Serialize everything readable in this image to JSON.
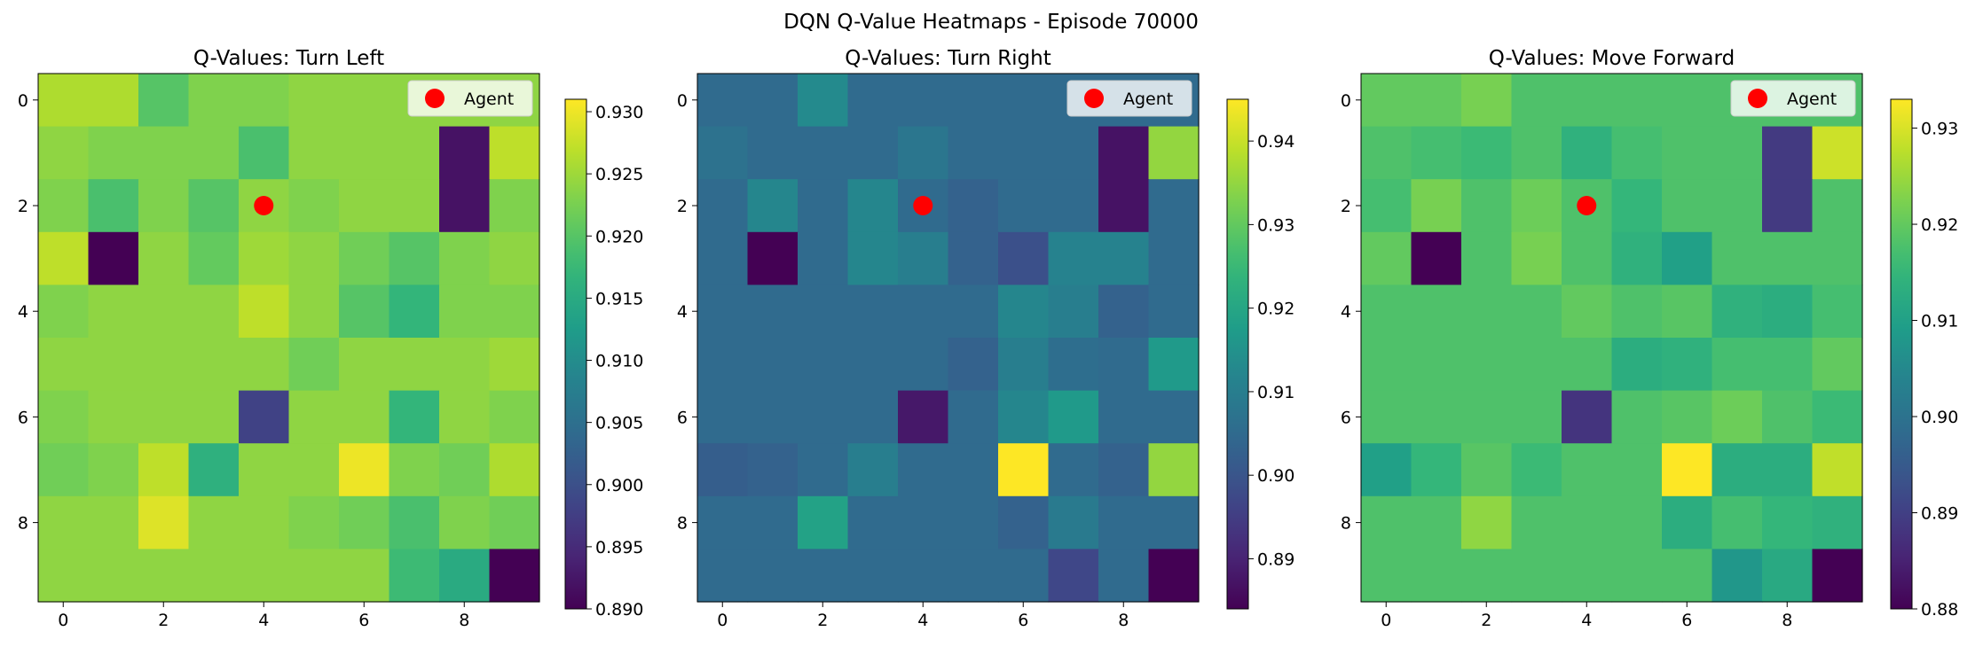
{
  "figure_title": "DQN Q-Value Heatmaps - Episode 70000",
  "chart_data": [
    {
      "type": "heatmap",
      "title": "Q-Values: Turn Left",
      "x_ticks": [
        0,
        2,
        4,
        6,
        8
      ],
      "y_ticks": [
        0,
        2,
        4,
        6,
        8
      ],
      "colormap": "viridis",
      "colorbar_range": [
        0.89,
        0.931
      ],
      "colorbar_ticks": [
        "0.890",
        "0.895",
        "0.900",
        "0.905",
        "0.910",
        "0.915",
        "0.920",
        "0.925",
        "0.930"
      ],
      "legend": {
        "label": "Agent",
        "placement": "upper right",
        "marker_color": "#ff0000"
      },
      "agent": {
        "row": 2,
        "col": 4
      },
      "values": [
        [
          0.926,
          0.926,
          0.92,
          0.923,
          0.923,
          0.924,
          0.924,
          0.924,
          0.924,
          0.924
        ],
        [
          0.924,
          0.923,
          0.923,
          0.923,
          0.919,
          0.924,
          0.924,
          0.924,
          0.892,
          0.927
        ],
        [
          0.923,
          0.919,
          0.923,
          0.92,
          0.924,
          0.923,
          0.924,
          0.924,
          0.892,
          0.923
        ],
        [
          0.927,
          0.89,
          0.924,
          0.921,
          0.925,
          0.924,
          0.922,
          0.92,
          0.923,
          0.924
        ],
        [
          0.923,
          0.924,
          0.924,
          0.924,
          0.927,
          0.924,
          0.92,
          0.917,
          0.923,
          0.923
        ],
        [
          0.924,
          0.924,
          0.924,
          0.924,
          0.924,
          0.922,
          0.924,
          0.924,
          0.924,
          0.925
        ],
        [
          0.923,
          0.924,
          0.924,
          0.924,
          0.898,
          0.924,
          0.924,
          0.917,
          0.924,
          0.923
        ],
        [
          0.922,
          0.923,
          0.927,
          0.916,
          0.924,
          0.924,
          0.93,
          0.923,
          0.922,
          0.926
        ],
        [
          0.924,
          0.924,
          0.929,
          0.924,
          0.924,
          0.923,
          0.922,
          0.919,
          0.923,
          0.922
        ],
        [
          0.924,
          0.924,
          0.924,
          0.924,
          0.924,
          0.924,
          0.924,
          0.918,
          0.915,
          0.89
        ]
      ]
    },
    {
      "type": "heatmap",
      "title": "Q-Values: Turn Right",
      "x_ticks": [
        0,
        2,
        4,
        6,
        8
      ],
      "y_ticks": [
        0,
        2,
        4,
        6,
        8
      ],
      "colormap": "viridis",
      "colorbar_range": [
        0.884,
        0.945
      ],
      "colorbar_ticks": [
        "0.89",
        "0.90",
        "0.91",
        "0.92",
        "0.93",
        "0.94"
      ],
      "legend": {
        "label": "Agent",
        "placement": "upper right",
        "marker_color": "#ff0000"
      },
      "agent": {
        "row": 2,
        "col": 4
      },
      "values": [
        [
          0.905,
          0.905,
          0.913,
          0.905,
          0.905,
          0.905,
          0.905,
          0.905,
          0.905,
          0.905
        ],
        [
          0.907,
          0.905,
          0.905,
          0.905,
          0.908,
          0.905,
          0.905,
          0.905,
          0.887,
          0.935
        ],
        [
          0.905,
          0.912,
          0.905,
          0.912,
          0.905,
          0.903,
          0.905,
          0.905,
          0.887,
          0.905
        ],
        [
          0.905,
          0.884,
          0.905,
          0.912,
          0.91,
          0.903,
          0.899,
          0.911,
          0.911,
          0.905
        ],
        [
          0.905,
          0.905,
          0.905,
          0.905,
          0.905,
          0.905,
          0.912,
          0.91,
          0.903,
          0.905
        ],
        [
          0.905,
          0.905,
          0.905,
          0.905,
          0.905,
          0.903,
          0.91,
          0.906,
          0.905,
          0.917
        ],
        [
          0.905,
          0.905,
          0.905,
          0.905,
          0.888,
          0.905,
          0.912,
          0.917,
          0.905,
          0.905
        ],
        [
          0.902,
          0.903,
          0.905,
          0.91,
          0.905,
          0.905,
          0.945,
          0.905,
          0.903,
          0.935
        ],
        [
          0.905,
          0.905,
          0.919,
          0.905,
          0.905,
          0.905,
          0.903,
          0.909,
          0.905,
          0.905
        ],
        [
          0.905,
          0.905,
          0.905,
          0.905,
          0.905,
          0.905,
          0.905,
          0.897,
          0.905,
          0.884
        ]
      ]
    },
    {
      "type": "heatmap",
      "title": "Q-Values: Move Forward",
      "x_ticks": [
        0,
        2,
        4,
        6,
        8
      ],
      "y_ticks": [
        0,
        2,
        4,
        6,
        8
      ],
      "colormap": "viridis",
      "colorbar_range": [
        0.88,
        0.933
      ],
      "colorbar_ticks": [
        "0.88",
        "0.89",
        "0.90",
        "0.91",
        "0.92",
        "0.93"
      ],
      "legend": {
        "label": "Agent",
        "placement": "upper right",
        "marker_color": "#ff0000"
      },
      "agent": {
        "row": 2,
        "col": 4
      },
      "values": [
        [
          0.92,
          0.92,
          0.922,
          0.918,
          0.918,
          0.918,
          0.918,
          0.918,
          0.918,
          0.918
        ],
        [
          0.918,
          0.917,
          0.916,
          0.918,
          0.914,
          0.917,
          0.918,
          0.918,
          0.889,
          0.929
        ],
        [
          0.917,
          0.922,
          0.918,
          0.921,
          0.918,
          0.915,
          0.918,
          0.918,
          0.889,
          0.918
        ],
        [
          0.92,
          0.88,
          0.918,
          0.922,
          0.918,
          0.914,
          0.91,
          0.918,
          0.918,
          0.918
        ],
        [
          0.918,
          0.918,
          0.918,
          0.918,
          0.92,
          0.918,
          0.919,
          0.914,
          0.913,
          0.917
        ],
        [
          0.918,
          0.918,
          0.918,
          0.918,
          0.918,
          0.913,
          0.914,
          0.917,
          0.917,
          0.92
        ],
        [
          0.918,
          0.918,
          0.918,
          0.918,
          0.888,
          0.918,
          0.919,
          0.921,
          0.918,
          0.916
        ],
        [
          0.91,
          0.915,
          0.919,
          0.916,
          0.918,
          0.918,
          0.933,
          0.913,
          0.913,
          0.928
        ],
        [
          0.918,
          0.918,
          0.924,
          0.918,
          0.918,
          0.918,
          0.913,
          0.917,
          0.915,
          0.914
        ],
        [
          0.918,
          0.918,
          0.918,
          0.918,
          0.918,
          0.918,
          0.918,
          0.908,
          0.912,
          0.88
        ]
      ]
    }
  ]
}
